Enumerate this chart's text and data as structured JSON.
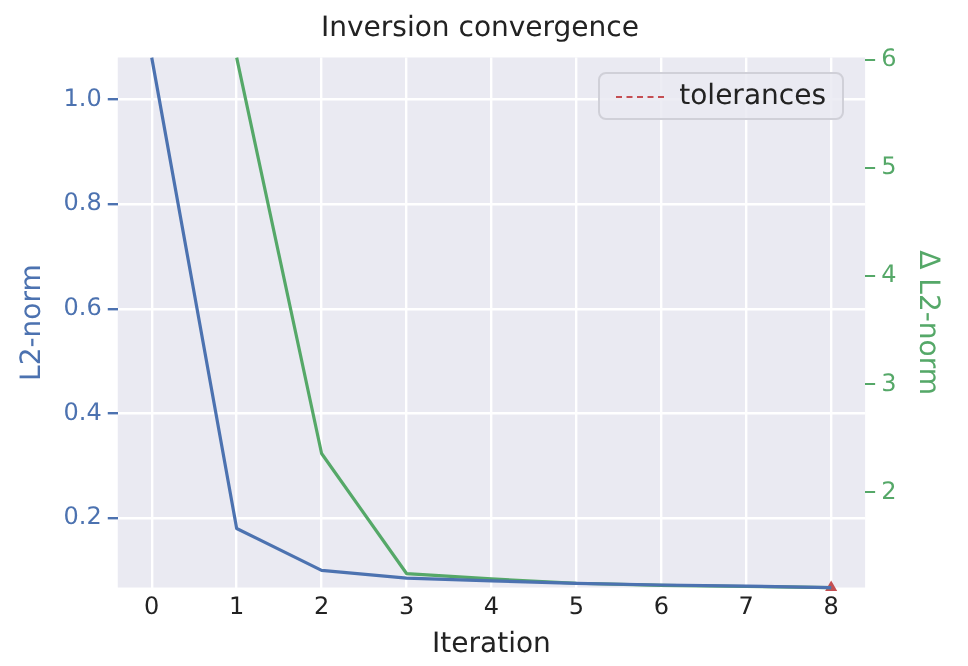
{
  "chart_data": {
    "type": "line",
    "title": "Inversion convergence",
    "xlabel": "Iteration",
    "ylabel": "L2-norm",
    "y2label": "Δ L2-norm",
    "xlim": [
      -0.4,
      8.4
    ],
    "xticks": [
      0,
      1,
      2,
      3,
      4,
      5,
      6,
      7,
      8
    ],
    "ylim": [
      0.067,
      1.08
    ],
    "yticks": [
      0.2,
      0.4,
      0.6,
      0.8,
      {
        "value": 1,
        "label": "1.0"
      }
    ],
    "y2lim": [
      1.12,
      6.02
    ],
    "y2ticks": [
      2,
      3,
      4,
      5,
      6
    ],
    "grid": true,
    "legend": "top right",
    "series": [
      {
        "color": "#4c72b0",
        "x": [
          0,
          1,
          2,
          3,
          4,
          5,
          6,
          7,
          8
        ],
        "values": [
          1.08,
          0.18,
          0.1,
          0.085,
          0.08,
          0.075,
          0.072,
          0.07,
          0.067
        ]
      },
      {
        "color": "#55a868",
        "axis": "y2",
        "x": [
          1,
          2,
          3,
          4,
          5,
          6,
          7,
          8
        ],
        "values": [
          6.02,
          2.36,
          1.25,
          1.2,
          1.16,
          1.14,
          1.13,
          1.12
        ]
      },
      {
        "name": "tolerances",
        "color": "#c44e52",
        "line_style": "dashed",
        "marker": "triangle",
        "x": [
          8
        ],
        "values": [
          0.067
        ]
      }
    ]
  }
}
